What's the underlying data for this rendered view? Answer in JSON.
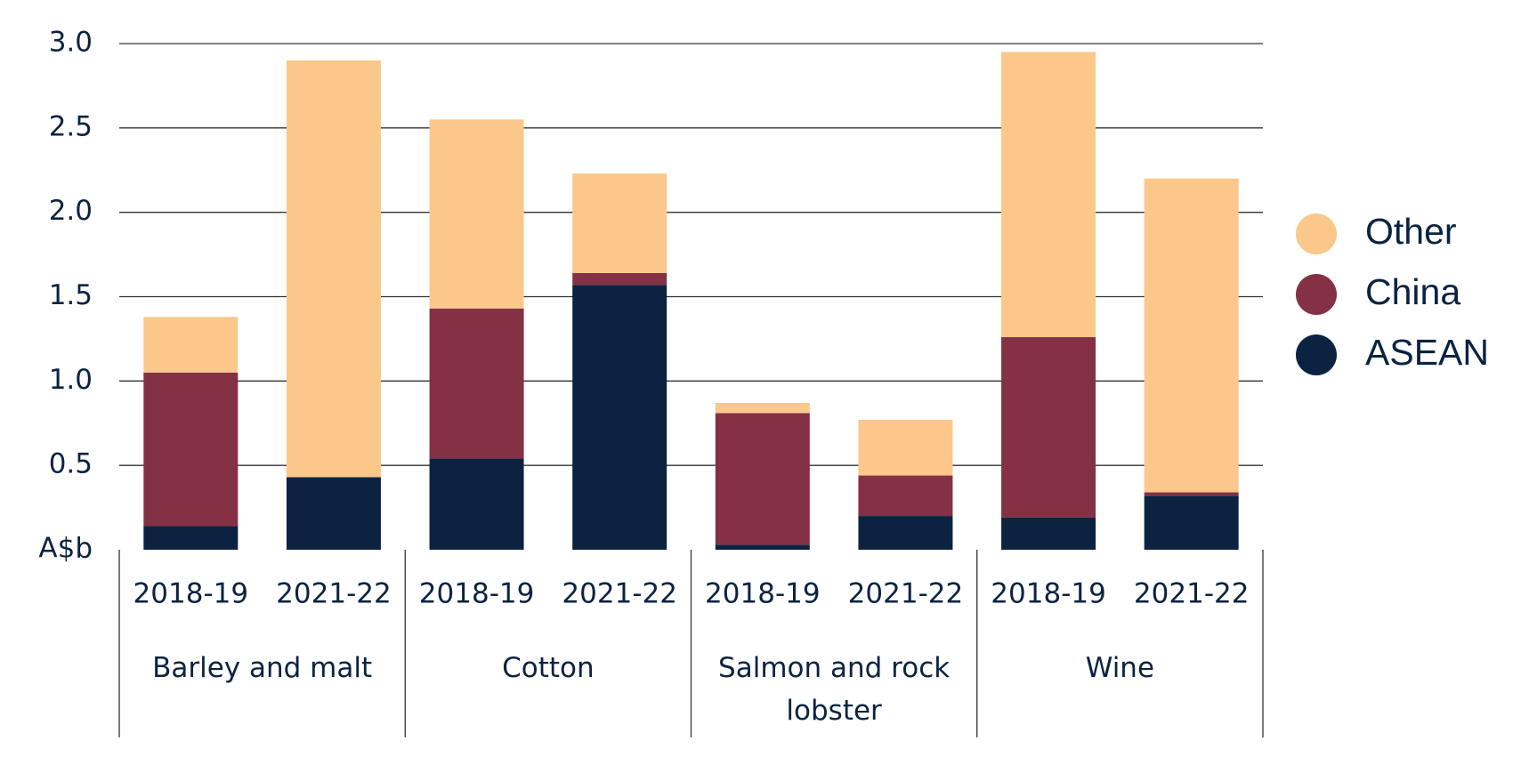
{
  "chart_data": {
    "type": "stacked_bar",
    "y_label": "A$b",
    "categories": [
      "2018-19",
      "2021-22",
      "2018-19",
      "2021-22",
      "2018-19",
      "2021-22",
      "2018-19",
      "2021-22"
    ],
    "groups": [
      "Barley and malt",
      "Cotton",
      "Salmon and rock lobster",
      "Wine"
    ],
    "series": [
      {
        "name": "ASEAN",
        "color": "#0b2341",
        "values": [
          0.14,
          0.43,
          0.54,
          1.57,
          0.03,
          0.2,
          0.19,
          0.32
        ]
      },
      {
        "name": "China",
        "color": "#843145",
        "values": [
          0.91,
          0,
          0.89,
          0.07,
          0.78,
          0.24,
          1.07,
          0.02
        ]
      },
      {
        "name": "Other",
        "color": "#fbc78b",
        "values": [
          0.33,
          2.47,
          1.12,
          0.59,
          0.06,
          0.33,
          1.69,
          1.86
        ]
      }
    ],
    "ylim": [
      0,
      3
    ],
    "yticks": [
      0.5,
      {
        "value": 1,
        "label": "1.0"
      },
      1.5,
      {
        "value": 2,
        "label": "2.0"
      },
      2.5,
      {
        "value": 3,
        "label": "3.0"
      }
    ],
    "grid": true,
    "legend": "right"
  }
}
